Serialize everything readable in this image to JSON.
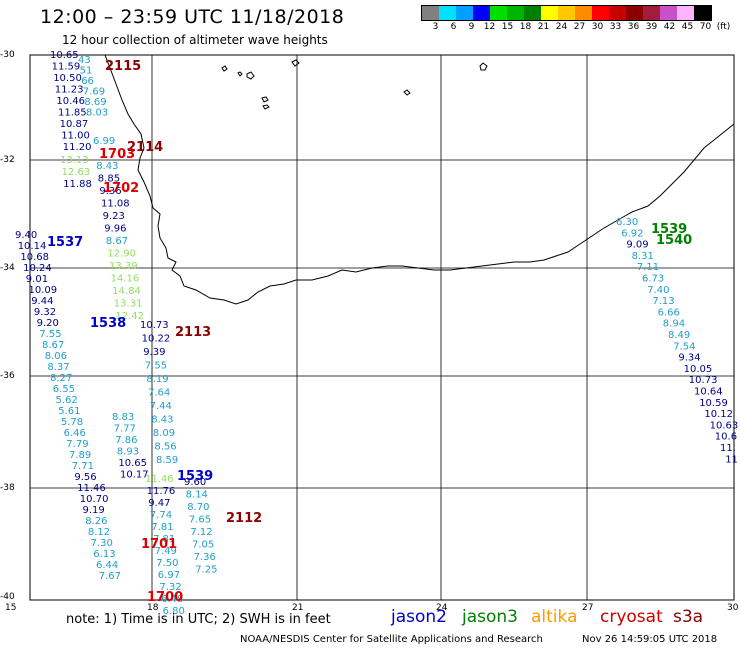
{
  "title": "12:00 – 23:59 UTC 11/18/2018",
  "subtitle": "12 hour collection of altimeter wave heights",
  "scale": {
    "labels": [
      "3",
      "6",
      "9",
      "12",
      "15",
      "18",
      "21",
      "24",
      "27",
      "30",
      "33",
      "36",
      "39",
      "42",
      "45",
      "70",
      "(ft)"
    ],
    "colors": [
      "#808080",
      "#00e0ff",
      "#00a0ff",
      "#0000ff",
      "#00e000",
      "#00b400",
      "#008000",
      "#ffff00",
      "#ffc800",
      "#ff8c00",
      "#ff0000",
      "#c80000",
      "#8c0000",
      "#a01e3c",
      "#c850c8",
      "#ffb4ff",
      "#000000"
    ]
  },
  "axes": {
    "lat_labels": [
      "-30",
      "-32",
      "-34",
      "-36",
      "-38",
      "-40"
    ],
    "lon_labels": [
      "15",
      "18",
      "21",
      "24",
      "27",
      "30"
    ]
  },
  "note": "note:  1) Time is in UTC;  2) SWH is in feet",
  "satellites": [
    {
      "name": "jason2",
      "color": "#0000cc"
    },
    {
      "name": "jason3",
      "color": "#008000"
    },
    {
      "name": "altika",
      "color": "#ff9900"
    },
    {
      "name": "cryosat",
      "color": "#cc0000"
    },
    {
      "name": "s3a",
      "color": "#8b0000"
    }
  ],
  "credit": "NOAA/NESDIS Center for Satellite Applications and Research",
  "credit_date": "Nov 26 14:59:05 UTC 2018",
  "tracks": [
    {
      "x": 50,
      "y0": 58,
      "dy": 11.5,
      "vals": [
        {
          "v": "10.65",
          "c": "#00008b"
        },
        {
          "v": "11.59",
          "c": "#00008b"
        },
        {
          "v": "10.50",
          "c": "#00008b"
        },
        {
          "v": "11.23",
          "c": "#00008b"
        },
        {
          "v": "10.46",
          "c": "#00008b"
        },
        {
          "v": "11.85",
          "c": "#00008b"
        },
        {
          "v": "10.87",
          "c": "#00008b"
        },
        {
          "v": "11.00",
          "c": "#00008b"
        },
        {
          "v": "11.20",
          "c": "#00008b"
        }
      ]
    },
    {
      "x": 78,
      "y0": 63,
      "dy": 10.5,
      "vals": [
        {
          "v": "43",
          "c": "#1fa0c8"
        },
        {
          "v": "51",
          "c": "#1fa0c8"
        },
        {
          "v": "66",
          "c": "#1fa0c8"
        },
        {
          "v": "7.69",
          "c": "#1fa0c8"
        },
        {
          "v": "8.69",
          "c": "#1fa0c8"
        },
        {
          "v": "8.03",
          "c": "#1fa0c8"
        }
      ]
    },
    {
      "x": 93,
      "y0": 144,
      "dy": 12.5,
      "vals": [
        {
          "v": "6.99",
          "c": "#1fa0c8"
        },
        {
          "v": "",
          "c": "#1fa0c8"
        },
        {
          "v": "8.43",
          "c": "#1fa0c8"
        },
        {
          "v": "8.85",
          "c": "#00008b"
        },
        {
          "v": "9.36",
          "c": "#00008b"
        },
        {
          "v": "11.08",
          "c": "#00008b"
        },
        {
          "v": "9.23",
          "c": "#00008b"
        },
        {
          "v": "9.96",
          "c": "#00008b"
        },
        {
          "v": "8.67",
          "c": "#1fa0c8"
        },
        {
          "v": "12.90",
          "c": "#90e060"
        },
        {
          "v": "13.39",
          "c": "#90e060"
        },
        {
          "v": "14.16",
          "c": "#90e060"
        },
        {
          "v": "14.84",
          "c": "#90e060"
        },
        {
          "v": "13.31",
          "c": "#90e060"
        },
        {
          "v": "12.42",
          "c": "#90e060"
        }
      ]
    },
    {
      "x": 60,
      "y0": 163,
      "dy": 12,
      "vals": [
        {
          "v": "13.13",
          "c": "#90e060"
        },
        {
          "v": "12.63",
          "c": "#90e060"
        },
        {
          "v": "11.88",
          "c": "#00008b"
        }
      ]
    },
    {
      "x": 15,
      "y0": 238,
      "dy": 11,
      "vals": [
        {
          "v": "9.40",
          "c": "#00008b"
        },
        {
          "v": "10.14",
          "c": "#00008b"
        },
        {
          "v": "10.68",
          "c": "#00008b"
        },
        {
          "v": "10.24",
          "c": "#00008b"
        },
        {
          "v": "9.01",
          "c": "#00008b"
        },
        {
          "v": "10.09",
          "c": "#00008b"
        },
        {
          "v": "9.44",
          "c": "#00008b"
        },
        {
          "v": "9.32",
          "c": "#00008b"
        },
        {
          "v": "9.20",
          "c": "#00008b"
        },
        {
          "v": "7.55",
          "c": "#1fa0c8"
        },
        {
          "v": "8.67",
          "c": "#1fa0c8"
        },
        {
          "v": "8.06",
          "c": "#1fa0c8"
        },
        {
          "v": "8.37",
          "c": "#1fa0c8"
        },
        {
          "v": "8.27",
          "c": "#1fa0c8"
        },
        {
          "v": "6.55",
          "c": "#1fa0c8"
        },
        {
          "v": "5.62",
          "c": "#1fa0c8"
        },
        {
          "v": "5.61",
          "c": "#1fa0c8"
        },
        {
          "v": "5.78",
          "c": "#1fa0c8"
        },
        {
          "v": "6.46",
          "c": "#1fa0c8"
        },
        {
          "v": "7.79",
          "c": "#1fa0c8"
        },
        {
          "v": "7.89",
          "c": "#1fa0c8"
        },
        {
          "v": "7.71",
          "c": "#1fa0c8"
        },
        {
          "v": "9.56",
          "c": "#00008b"
        },
        {
          "v": "11.46",
          "c": "#00008b"
        },
        {
          "v": "10.70",
          "c": "#00008b"
        },
        {
          "v": "9.19",
          "c": "#00008b"
        },
        {
          "v": "8.26",
          "c": "#1fa0c8"
        },
        {
          "v": "8.12",
          "c": "#1fa0c8"
        },
        {
          "v": "7.30",
          "c": "#1fa0c8"
        },
        {
          "v": "6.13",
          "c": "#1fa0c8"
        },
        {
          "v": "6.44",
          "c": "#1fa0c8"
        },
        {
          "v": "7.67",
          "c": "#1fa0c8"
        }
      ]
    },
    {
      "x": 140,
      "y0": 328,
      "dy": 13.5,
      "vals": [
        {
          "v": "10.73",
          "c": "#00008b"
        },
        {
          "v": "10.22",
          "c": "#00008b"
        },
        {
          "v": "9.39",
          "c": "#00008b"
        },
        {
          "v": "7.55",
          "c": "#1fa0c8"
        },
        {
          "v": "8.19",
          "c": "#1fa0c8"
        },
        {
          "v": "7.64",
          "c": "#1fa0c8"
        },
        {
          "v": "7.44",
          "c": "#1fa0c8"
        },
        {
          "v": "8.43",
          "c": "#1fa0c8"
        },
        {
          "v": "8.09",
          "c": "#1fa0c8"
        },
        {
          "v": "8.56",
          "c": "#1fa0c8"
        },
        {
          "v": "8.59",
          "c": "#1fa0c8"
        }
      ]
    },
    {
      "x": 112,
      "y0": 420,
      "dy": 11.5,
      "vals": [
        {
          "v": "8.83",
          "c": "#1fa0c8"
        },
        {
          "v": "7.77",
          "c": "#1fa0c8"
        },
        {
          "v": "7.86",
          "c": "#1fa0c8"
        },
        {
          "v": "8.93",
          "c": "#1fa0c8"
        },
        {
          "v": "10.65",
          "c": "#00008b"
        },
        {
          "v": "10.17",
          "c": "#00008b"
        }
      ]
    },
    {
      "x": 145,
      "y0": 482,
      "dy": 12,
      "vals": [
        {
          "v": "11.46",
          "c": "#90e060"
        },
        {
          "v": "11.76",
          "c": "#00008b"
        },
        {
          "v": "9.47",
          "c": "#00008b"
        },
        {
          "v": "7.74",
          "c": "#1fa0c8"
        },
        {
          "v": "7.81",
          "c": "#1fa0c8"
        },
        {
          "v": "7.81",
          "c": "#1fa0c8"
        },
        {
          "v": "7.49",
          "c": "#1fa0c8"
        },
        {
          "v": "7.50",
          "c": "#1fa0c8"
        },
        {
          "v": "6.97",
          "c": "#1fa0c8"
        },
        {
          "v": "7.32",
          "c": "#1fa0c8"
        },
        {
          "v": "6.48",
          "c": "#1fa0c8"
        },
        {
          "v": "6.80",
          "c": "#1fa0c8"
        }
      ]
    },
    {
      "x": 184,
      "y0": 485,
      "dy": 12.5,
      "vals": [
        {
          "v": "9.60",
          "c": "#00008b"
        },
        {
          "v": "8.14",
          "c": "#1fa0c8"
        },
        {
          "v": "8.70",
          "c": "#1fa0c8"
        },
        {
          "v": "7.65",
          "c": "#1fa0c8"
        },
        {
          "v": "7.12",
          "c": "#1fa0c8"
        },
        {
          "v": "7.05",
          "c": "#1fa0c8"
        },
        {
          "v": "7.36",
          "c": "#1fa0c8"
        },
        {
          "v": "7.25",
          "c": "#1fa0c8"
        }
      ]
    },
    {
      "x": 616,
      "y0": 225,
      "dy": 11.3,
      "vals": [
        {
          "v": "6.30",
          "c": "#1fa0c8"
        },
        {
          "v": "6.92",
          "c": "#1fa0c8"
        },
        {
          "v": "9.09",
          "c": "#00008b"
        },
        {
          "v": "8.31",
          "c": "#1fa0c8"
        },
        {
          "v": "7.11",
          "c": "#1fa0c8"
        },
        {
          "v": "6.73",
          "c": "#1fa0c8"
        },
        {
          "v": "7.40",
          "c": "#1fa0c8"
        },
        {
          "v": "7.13",
          "c": "#1fa0c8"
        },
        {
          "v": "6.66",
          "c": "#1fa0c8"
        },
        {
          "v": "8.94",
          "c": "#1fa0c8"
        },
        {
          "v": "8.49",
          "c": "#1fa0c8"
        },
        {
          "v": "7.54",
          "c": "#1fa0c8"
        },
        {
          "v": "9.34",
          "c": "#00008b"
        },
        {
          "v": "10.05",
          "c": "#00008b"
        },
        {
          "v": "10.73",
          "c": "#00008b"
        },
        {
          "v": "10.64",
          "c": "#00008b"
        },
        {
          "v": "10.59",
          "c": "#00008b"
        },
        {
          "v": "10.12",
          "c": "#00008b"
        },
        {
          "v": "10.63",
          "c": "#00008b"
        },
        {
          "v": "10.6",
          "c": "#00008b"
        },
        {
          "v": "11.",
          "c": "#00008b"
        },
        {
          "v": "11",
          "c": "#00008b"
        }
      ]
    }
  ],
  "time_labels": [
    {
      "t": "2115",
      "c": "#8b0000"
    },
    {
      "t": "2114",
      "c": "#8b0000"
    },
    {
      "t": "1703",
      "c": "#dd0000"
    },
    {
      "t": "1702",
      "c": "#dd0000"
    },
    {
      "t": "1537",
      "c": "#0000cc"
    },
    {
      "t": "1538",
      "c": "#0000cc"
    },
    {
      "t": "2113",
      "c": "#8b0000"
    },
    {
      "t": "1539",
      "c": "#0000cc"
    },
    {
      "t": "2112",
      "c": "#8b0000"
    },
    {
      "t": "1701",
      "c": "#dd0000"
    },
    {
      "t": "1700",
      "c": "#dd0000"
    },
    {
      "t": "1539",
      "c": "#008000"
    },
    {
      "t": "1540",
      "c": "#008000"
    }
  ]
}
